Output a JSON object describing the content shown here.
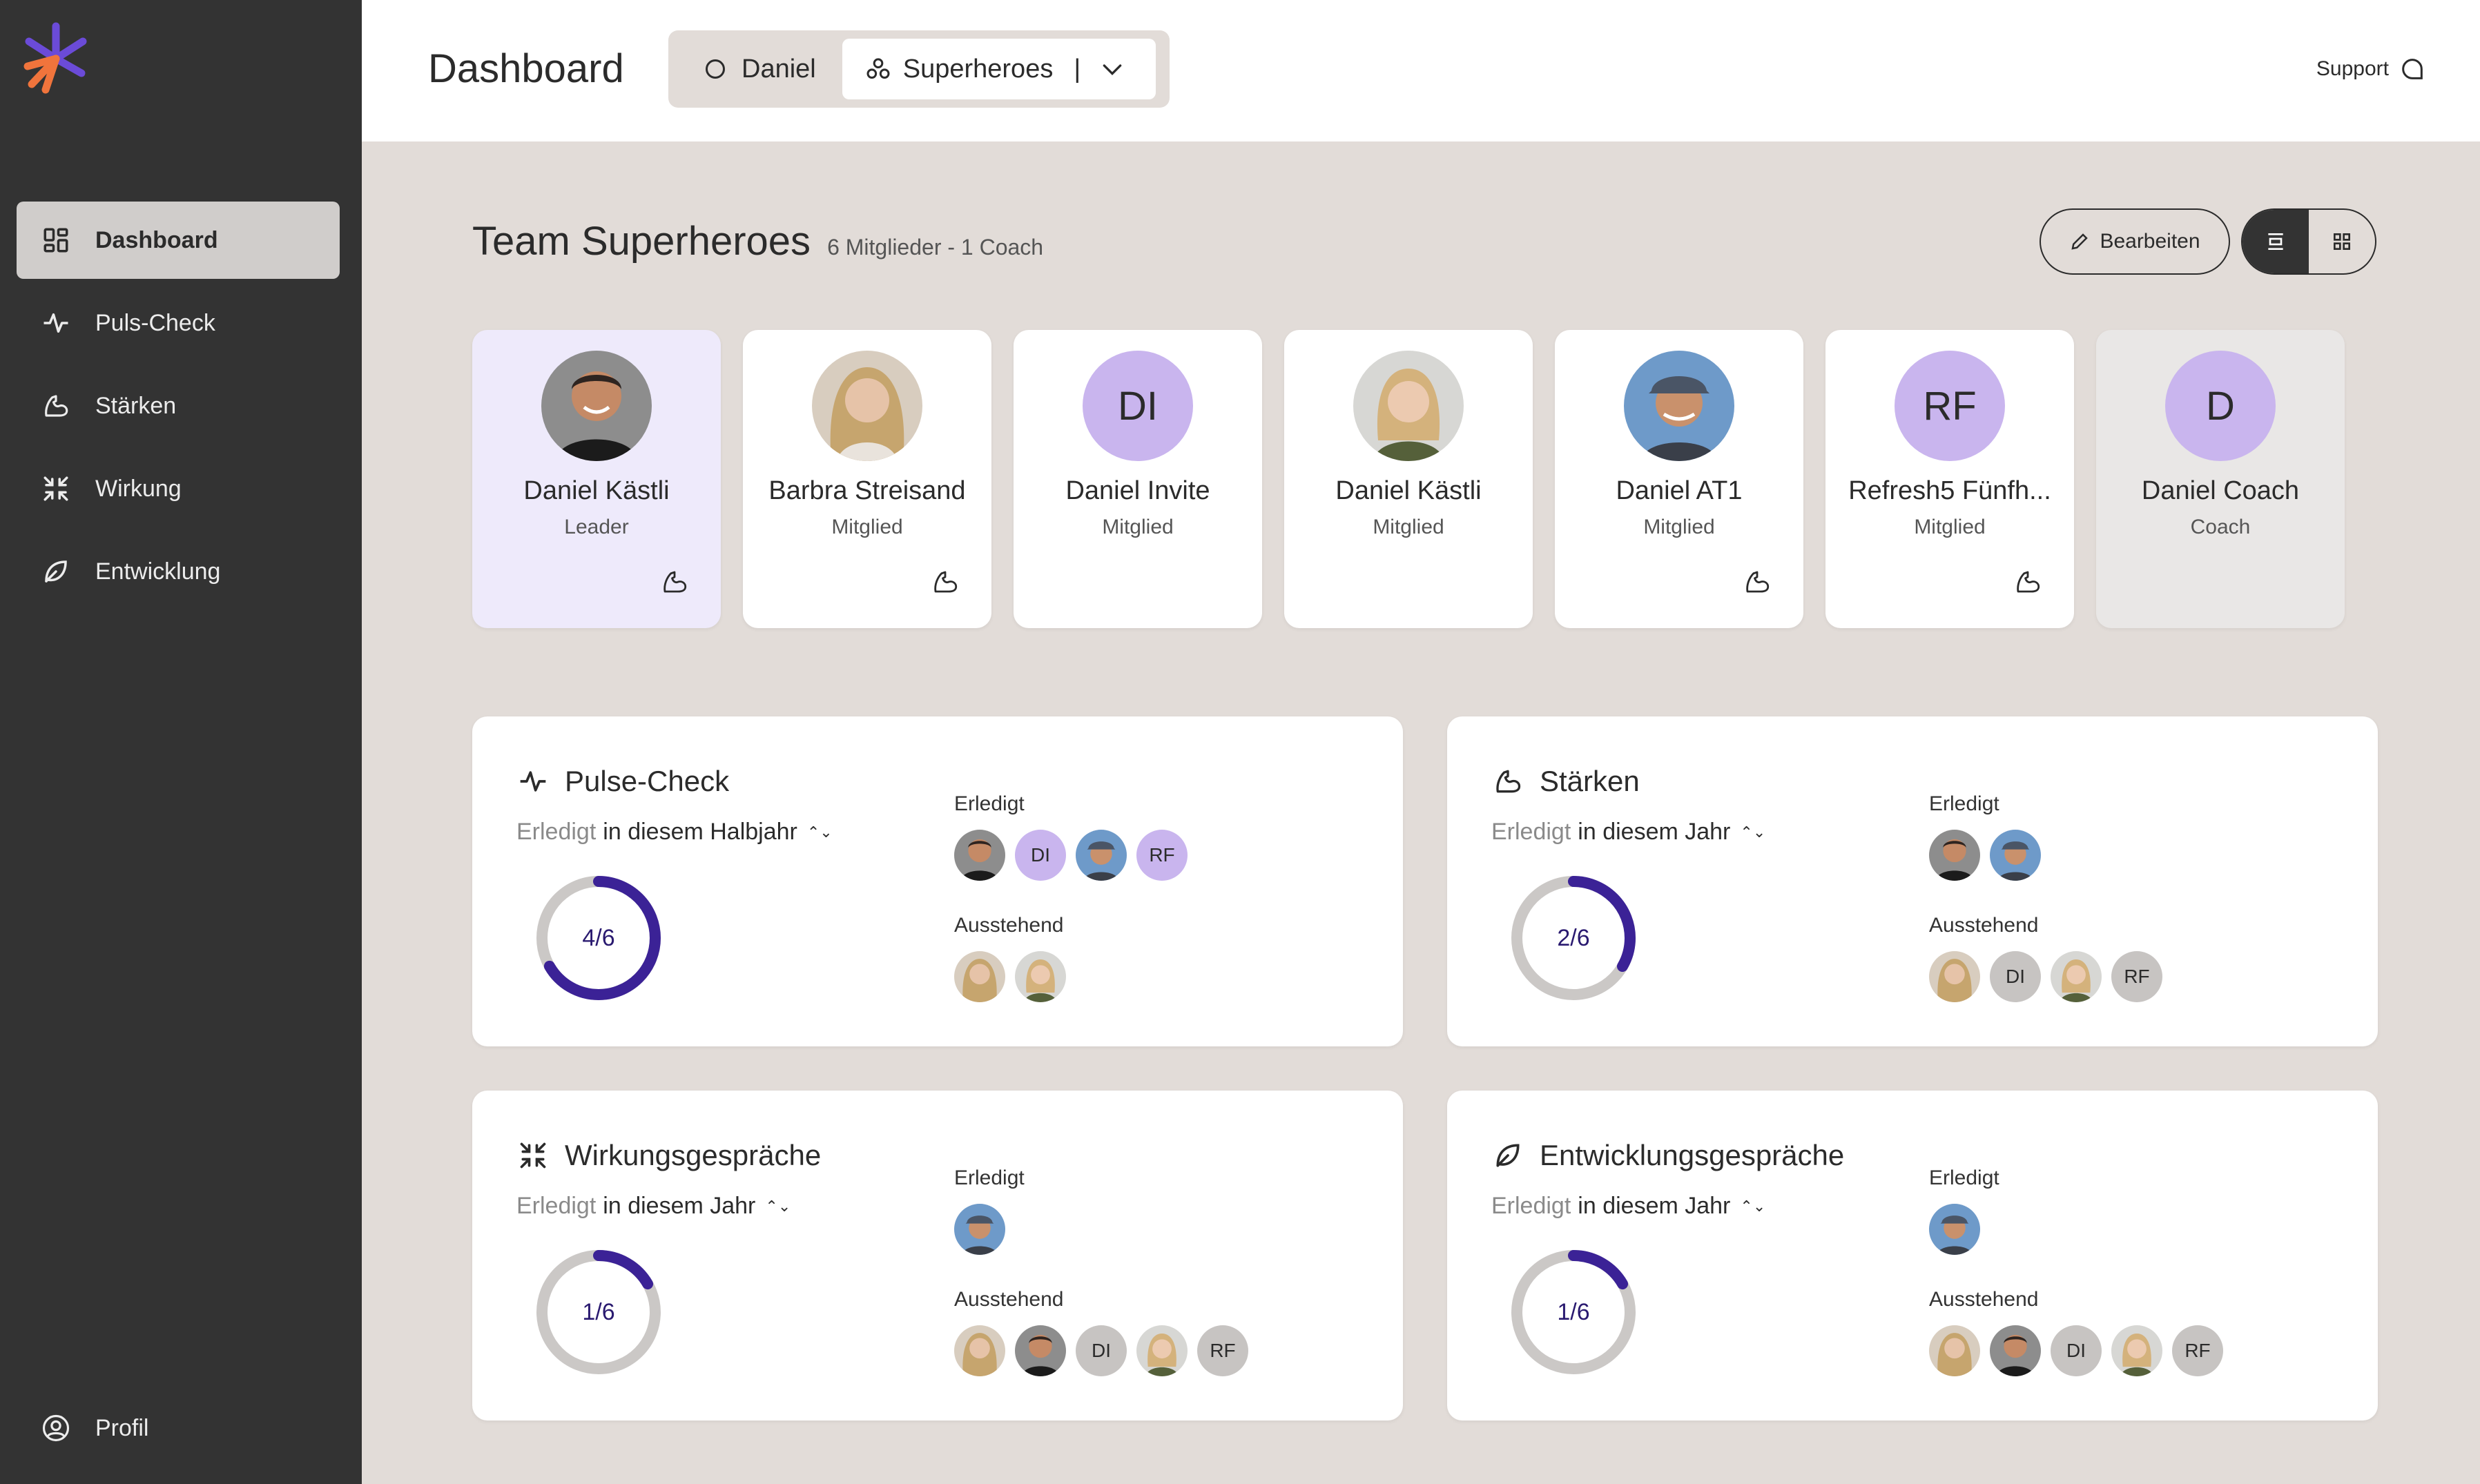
{
  "sidebar": {
    "items": [
      {
        "label": "Dashboard"
      },
      {
        "label": "Puls-Check"
      },
      {
        "label": "Stärken"
      },
      {
        "label": "Wirkung"
      },
      {
        "label": "Entwicklung"
      }
    ],
    "profile_label": "Profil"
  },
  "topbar": {
    "title": "Dashboard",
    "user_label": "Daniel",
    "team_label": "Superheroes",
    "separator": "|",
    "support_label": "Support"
  },
  "team": {
    "title": "Team Superheroes",
    "subtitle": "6 Mitglieder - 1 Coach",
    "edit_label": "Bearbeiten"
  },
  "members": [
    {
      "name": "Daniel Kästli",
      "role": "Leader",
      "initials": "",
      "photo": "man-a",
      "strength_icon": true
    },
    {
      "name": "Barbra Streisand",
      "role": "Mitglied",
      "initials": "",
      "photo": "woman-a",
      "strength_icon": true
    },
    {
      "name": "Daniel Invite",
      "role": "Mitglied",
      "initials": "DI",
      "photo": "",
      "strength_icon": false
    },
    {
      "name": "Daniel Kästli",
      "role": "Mitglied",
      "initials": "",
      "photo": "woman-b",
      "strength_icon": false
    },
    {
      "name": "Daniel AT1",
      "role": "Mitglied",
      "initials": "",
      "photo": "man-b",
      "strength_icon": true
    },
    {
      "name": "Refresh5 Fünfh...",
      "role": "Mitglied",
      "initials": "RF",
      "photo": "",
      "strength_icon": true
    },
    {
      "name": "Daniel Coach",
      "role": "Coach",
      "initials": "D",
      "photo": "",
      "strength_icon": false
    }
  ],
  "cards": {
    "pulse": {
      "title": "Pulse-Check",
      "filter_prefix": "Erledigt",
      "filter_value": "in diesem Halbjahr",
      "progress": "4/6",
      "done_fraction": 0.6667,
      "done_label": "Erledigt",
      "pending_label": "Ausstehend"
    },
    "strengths": {
      "title": "Stärken",
      "filter_prefix": "Erledigt",
      "filter_value": "in diesem Jahr",
      "progress": "2/6",
      "done_fraction": 0.3333,
      "done_label": "Erledigt",
      "pending_label": "Ausstehend"
    },
    "impact": {
      "title": "Wirkungsgespräche",
      "filter_prefix": "Erledigt",
      "filter_value": "in diesem Jahr",
      "progress": "1/6",
      "done_fraction": 0.1667,
      "done_label": "Erledigt",
      "pending_label": "Ausstehend"
    },
    "development": {
      "title": "Entwicklungsgespräche",
      "filter_prefix": "Erledigt",
      "filter_value": "in diesem Jahr",
      "progress": "1/6",
      "done_fraction": 0.1667,
      "done_label": "Erledigt",
      "pending_label": "Ausstehend"
    }
  },
  "avatar_initials": {
    "di": "DI",
    "rf": "RF"
  },
  "colors": {
    "sidebar_bg": "#333333",
    "accent_purple": "#3b2296",
    "initials_purple": "#c9b5ee",
    "page_bg": "#e2dcd8"
  }
}
